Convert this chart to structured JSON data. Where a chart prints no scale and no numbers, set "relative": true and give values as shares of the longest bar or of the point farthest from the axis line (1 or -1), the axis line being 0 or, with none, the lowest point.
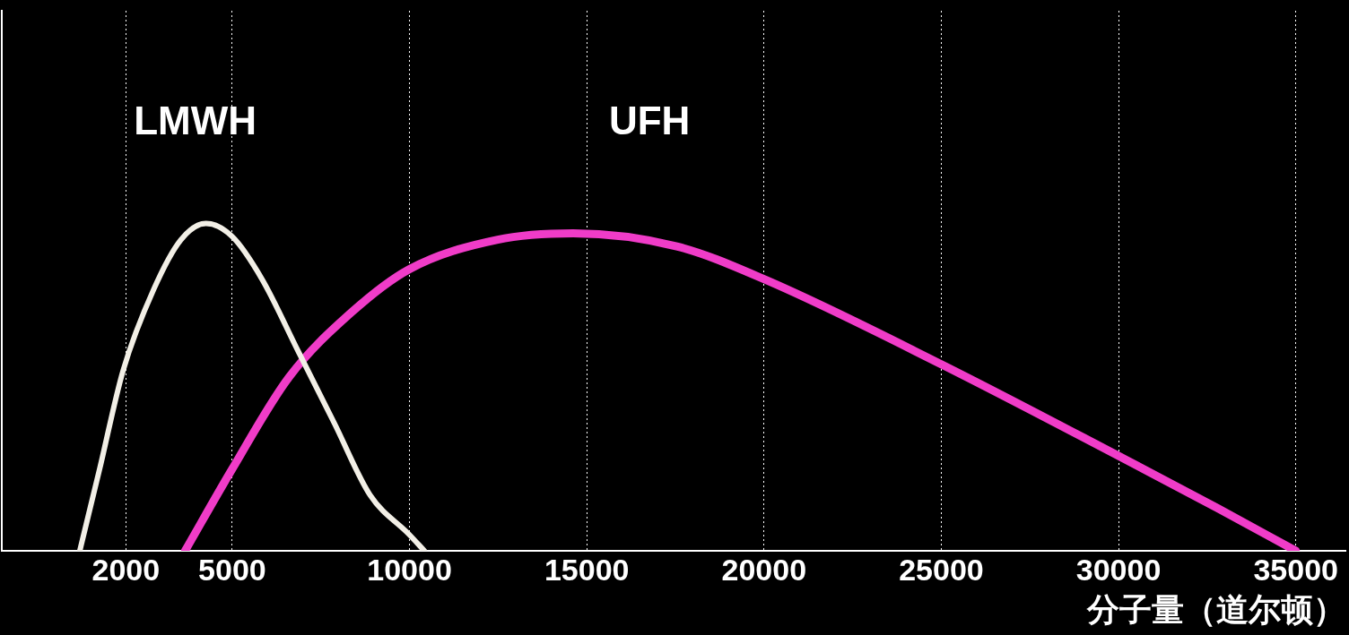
{
  "chart_data": {
    "type": "line",
    "relative": true,
    "xlabel": "分子量（道尔顿）",
    "xlim": [
      -1500,
      36400
    ],
    "xticks": [
      2000,
      5000,
      10000,
      15000,
      20000,
      25000,
      30000,
      35000
    ],
    "grid": "x",
    "marker": "none",
    "line_style": "solid",
    "legend": false,
    "series": [
      {
        "name": "LMWH",
        "color": "#f2efe6",
        "x": [
          700,
          1260,
          1920,
          2790,
          3550,
          4260,
          5000,
          5840,
          6860,
          7880,
          8890,
          9990,
          10420
        ],
        "values": [
          0,
          0.25,
          0.55,
          0.8,
          0.95,
          1,
          0.96,
          0.83,
          0.61,
          0.39,
          0.17,
          0.05,
          0
        ]
      },
      {
        "name": "UFH",
        "color": "#f03cc8",
        "x": [
          3670,
          5000,
          6600,
          8380,
          9990,
          12460,
          14620,
          17540,
          20000,
          25000,
          30000,
          32800,
          35000
        ],
        "values": [
          0,
          0.25,
          0.53,
          0.73,
          0.86,
          0.95,
          0.97,
          0.93,
          0.83,
          0.57,
          0.29,
          0.13,
          0
        ]
      }
    ]
  }
}
